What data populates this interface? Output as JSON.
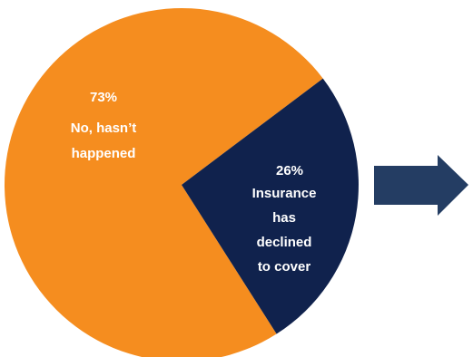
{
  "chart_data": {
    "type": "pie",
    "title": "",
    "slices": [
      {
        "value": 73,
        "value_label": "73%",
        "label_lines": [
          "No, hasn’t",
          "happened"
        ],
        "color": "#f58d1f"
      },
      {
        "value": 26,
        "value_label": "26%",
        "label_lines": [
          "Insurance",
          "has",
          "declined",
          "to cover"
        ],
        "color": "#10224d"
      }
    ],
    "legend": "none"
  },
  "arrow": {
    "color": "#243d63",
    "direction": "right"
  }
}
